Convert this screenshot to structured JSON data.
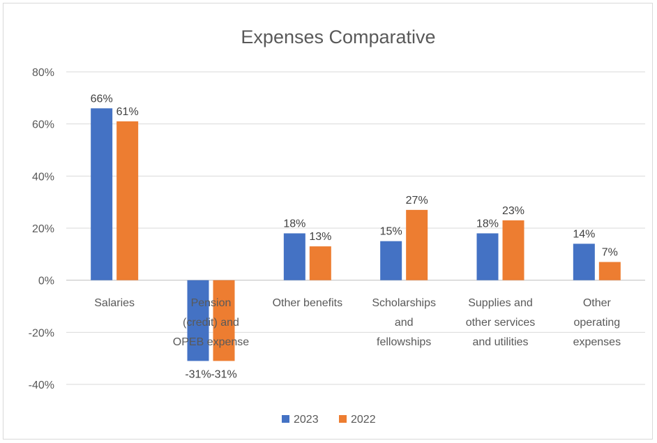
{
  "chart_data": {
    "type": "bar",
    "title": "Expenses Comparative",
    "xlabel": "",
    "ylabel": "",
    "ylim": [
      -40,
      80
    ],
    "yticks": [
      "80%",
      "60%",
      "40%",
      "20%",
      "0%",
      "-20%",
      "-40%"
    ],
    "ytick_values": [
      80,
      60,
      40,
      20,
      0,
      -20,
      -40
    ],
    "categories": [
      [
        "Salaries"
      ],
      [
        "Pension",
        "(credit) and",
        "OPEB expense"
      ],
      [
        "Other benefits"
      ],
      [
        "Scholarships",
        "and",
        "fellowships"
      ],
      [
        "Supplies and",
        "other services",
        "and utilities"
      ],
      [
        "Other",
        "operating",
        "expenses"
      ]
    ],
    "series": [
      {
        "name": "2023",
        "color": "#4472c4",
        "values": [
          66,
          -31,
          18,
          15,
          18,
          14
        ],
        "labels": [
          "66%",
          "-31%",
          "18%",
          "15%",
          "18%",
          "14%"
        ]
      },
      {
        "name": "2022",
        "color": "#ed7d31",
        "values": [
          61,
          -31,
          13,
          27,
          23,
          7
        ],
        "labels": [
          "61%",
          "-31%",
          "13%",
          "27%",
          "23%",
          "7%"
        ]
      }
    ],
    "grid": true,
    "legend": "bottom"
  }
}
